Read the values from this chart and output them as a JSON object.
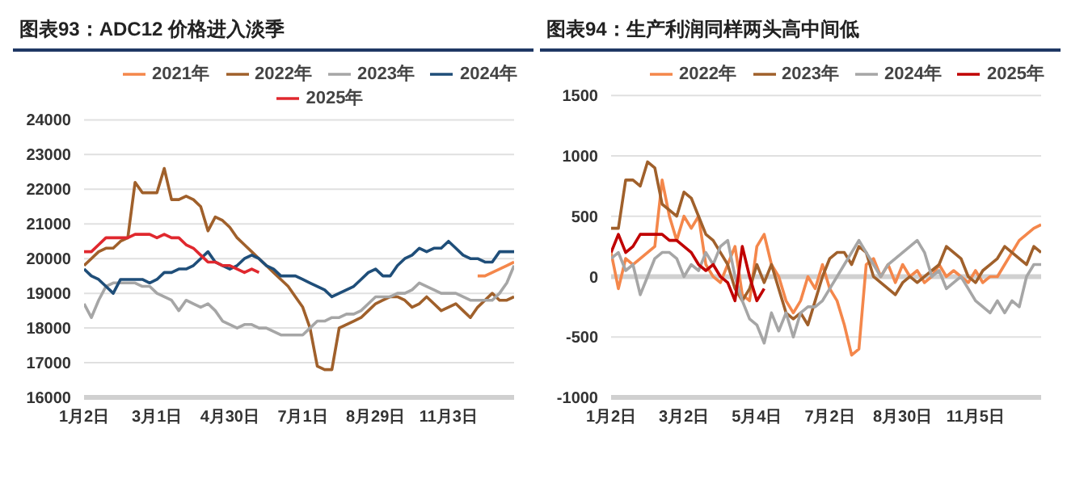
{
  "chart_data": [
    {
      "type": "line",
      "title": "图表93：ADC12 价格进入淡季",
      "categories": [
        "1月2日",
        null,
        null,
        null,
        null,
        null,
        null,
        null,
        null,
        null,
        "3月1日",
        null,
        null,
        null,
        null,
        null,
        null,
        null,
        null,
        null,
        "4月30日",
        null,
        null,
        null,
        null,
        null,
        null,
        null,
        null,
        null,
        "7月1日",
        null,
        null,
        null,
        null,
        null,
        null,
        null,
        null,
        null,
        "8月29日",
        null,
        null,
        null,
        null,
        null,
        null,
        null,
        null,
        null,
        "11月3日",
        null,
        null,
        null,
        null,
        null,
        null,
        null,
        null,
        null
      ],
      "ylim": [
        16000,
        24000
      ],
      "yticks": [
        16000,
        17000,
        18000,
        19000,
        20000,
        21000,
        22000,
        23000,
        24000
      ],
      "grid": "y",
      "legend": "top",
      "marker": "none",
      "line_style": "solid",
      "series": [
        {
          "name": "2021年",
          "color": "#f4874b",
          "values": [
            null,
            null,
            null,
            null,
            null,
            null,
            null,
            null,
            null,
            null,
            null,
            null,
            null,
            null,
            null,
            null,
            null,
            null,
            null,
            null,
            null,
            null,
            null,
            null,
            null,
            null,
            null,
            null,
            null,
            null,
            null,
            null,
            null,
            null,
            null,
            null,
            null,
            null,
            null,
            null,
            null,
            null,
            null,
            null,
            null,
            null,
            null,
            null,
            null,
            null,
            null,
            null,
            null,
            null,
            19500,
            19500,
            19600,
            19700,
            19800,
            19900
          ]
        },
        {
          "name": "2022年",
          "color": "#a0602b",
          "values": [
            19800,
            20000,
            20200,
            20300,
            20300,
            20500,
            20600,
            22200,
            21900,
            21900,
            21900,
            22600,
            21700,
            21700,
            21800,
            21700,
            21500,
            20800,
            21200,
            21100,
            20900,
            20600,
            20400,
            20200,
            20000,
            19800,
            19600,
            19400,
            19200,
            18900,
            18600,
            18000,
            16900,
            16800,
            16800,
            18000,
            18100,
            18200,
            18300,
            18500,
            18700,
            18800,
            18900,
            18900,
            18800,
            18600,
            18700,
            18900,
            18700,
            18500,
            18600,
            18700,
            18500,
            18300,
            18600,
            18800,
            19000,
            18800,
            18800,
            18900
          ]
        },
        {
          "name": "2023年",
          "color": "#a6a6a6",
          "values": [
            18700,
            18300,
            18800,
            19200,
            19300,
            19300,
            19300,
            19300,
            19200,
            19200,
            19000,
            18900,
            18800,
            18500,
            18800,
            18700,
            18600,
            18700,
            18500,
            18200,
            18100,
            18000,
            18100,
            18100,
            18000,
            18000,
            17900,
            17800,
            17800,
            17800,
            17800,
            18000,
            18200,
            18200,
            18300,
            18300,
            18400,
            18400,
            18500,
            18700,
            18900,
            18900,
            18900,
            19000,
            19000,
            19100,
            19300,
            19200,
            19100,
            19000,
            19000,
            19000,
            18900,
            18800,
            18800,
            18800,
            18800,
            19000,
            19300,
            19800
          ]
        },
        {
          "name": "2024年",
          "color": "#1f4e79",
          "values": [
            19700,
            19500,
            19400,
            19200,
            19000,
            19400,
            19400,
            19400,
            19400,
            19300,
            19400,
            19600,
            19600,
            19700,
            19700,
            19800,
            20000,
            20200,
            19900,
            19800,
            19700,
            19800,
            20000,
            20100,
            20000,
            19800,
            19700,
            19500,
            19500,
            19500,
            19400,
            19300,
            19200,
            19100,
            18900,
            19000,
            19100,
            19200,
            19400,
            19600,
            19700,
            19500,
            19500,
            19800,
            20000,
            20100,
            20300,
            20200,
            20300,
            20300,
            20500,
            20300,
            20100,
            20000,
            20000,
            19900,
            19900,
            20200,
            20200,
            20200
          ]
        },
        {
          "name": "2025年",
          "color": "#e0282e",
          "values": [
            20200,
            20200,
            20400,
            20600,
            20600,
            20600,
            20600,
            20700,
            20700,
            20700,
            20600,
            20700,
            20600,
            20600,
            20400,
            20300,
            20100,
            19900,
            19900,
            19800,
            19800,
            19700,
            19600,
            19700,
            19600,
            null,
            null,
            null,
            null,
            null,
            null,
            null,
            null,
            null,
            null,
            null,
            null,
            null,
            null,
            null,
            null,
            null,
            null,
            null,
            null,
            null,
            null,
            null,
            null,
            null,
            null,
            null,
            null,
            null,
            null,
            null,
            null,
            null,
            null,
            null
          ]
        }
      ]
    },
    {
      "type": "line",
      "title": "图表94：生产利润同样两头高中间低",
      "categories": [
        "1月2日",
        null,
        null,
        null,
        null,
        null,
        null,
        null,
        null,
        null,
        "3月2日",
        null,
        null,
        null,
        null,
        null,
        null,
        null,
        null,
        null,
        "5月4日",
        null,
        null,
        null,
        null,
        null,
        null,
        null,
        null,
        null,
        "7月2日",
        null,
        null,
        null,
        null,
        null,
        null,
        null,
        null,
        null,
        "8月30日",
        null,
        null,
        null,
        null,
        null,
        null,
        null,
        null,
        null,
        "11月5日",
        null,
        null,
        null,
        null,
        null,
        null,
        null,
        null,
        null
      ],
      "ylim": [
        -1000,
        1500
      ],
      "yticks": [
        -1000,
        -500,
        0,
        500,
        1000,
        1500
      ],
      "grid": "y",
      "legend": "top",
      "marker": "none",
      "line_style": "solid",
      "ref_lines": [
        {
          "axis": "y",
          "value": 0,
          "color": "#d0d0d0"
        }
      ],
      "series": [
        {
          "name": "2022年",
          "color": "#f4874b",
          "values": [
            200,
            -100,
            150,
            100,
            150,
            200,
            250,
            800,
            500,
            300,
            500,
            400,
            500,
            100,
            0,
            -50,
            100,
            250,
            -150,
            -200,
            250,
            350,
            100,
            0,
            -200,
            -300,
            -200,
            0,
            -100,
            100,
            -100,
            -200,
            -400,
            -650,
            -600,
            100,
            150,
            0,
            100,
            -50,
            100,
            0,
            50,
            -50,
            0,
            100,
            0,
            50,
            0,
            -50,
            50,
            -50,
            0,
            0,
            100,
            200,
            300,
            350,
            400,
            430
          ]
        },
        {
          "name": "2023年",
          "color": "#a0602b",
          "values": [
            400,
            400,
            800,
            800,
            750,
            950,
            900,
            600,
            550,
            500,
            700,
            650,
            500,
            350,
            300,
            200,
            100,
            -100,
            -200,
            -100,
            100,
            -50,
            100,
            -100,
            -300,
            -350,
            -300,
            -400,
            -200,
            0,
            150,
            200,
            200,
            100,
            250,
            200,
            0,
            -50,
            -100,
            -150,
            -50,
            0,
            -50,
            0,
            50,
            100,
            250,
            200,
            150,
            0,
            -50,
            50,
            100,
            150,
            250,
            200,
            150,
            100,
            250,
            200
          ]
        },
        {
          "name": "2024年",
          "color": "#a6a6a6",
          "values": [
            150,
            200,
            50,
            100,
            -150,
            0,
            150,
            200,
            200,
            150,
            0,
            100,
            50,
            200,
            100,
            250,
            300,
            0,
            -200,
            -350,
            -400,
            -550,
            -300,
            -450,
            -300,
            -500,
            -300,
            -250,
            -250,
            -200,
            -100,
            0,
            100,
            200,
            300,
            200,
            100,
            0,
            100,
            150,
            200,
            250,
            300,
            200,
            0,
            50,
            -100,
            -50,
            0,
            -100,
            -200,
            -250,
            -300,
            -200,
            -300,
            -200,
            -250,
            0,
            100,
            100
          ]
        },
        {
          "name": "2025年",
          "color": "#c00000",
          "values": [
            200,
            350,
            200,
            250,
            350,
            350,
            350,
            350,
            300,
            300,
            250,
            200,
            100,
            50,
            100,
            0,
            -50,
            -200,
            250,
            0,
            -200,
            -100,
            null,
            null,
            null,
            null,
            null,
            null,
            null,
            null,
            null,
            null,
            null,
            null,
            null,
            null,
            null,
            null,
            null,
            null,
            null,
            null,
            null,
            null,
            null,
            null,
            null,
            null,
            null,
            null,
            null,
            null,
            null,
            null,
            null,
            null,
            null,
            null,
            null,
            null
          ]
        }
      ]
    }
  ]
}
